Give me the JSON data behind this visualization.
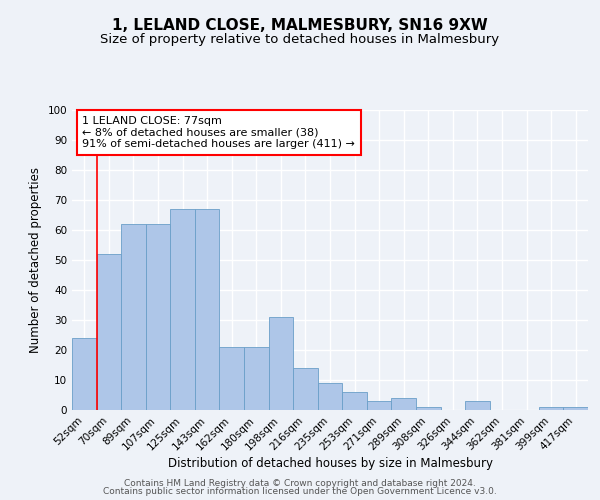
{
  "title1": "1, LELAND CLOSE, MALMESBURY, SN16 9XW",
  "title2": "Size of property relative to detached houses in Malmesbury",
  "xlabel": "Distribution of detached houses by size in Malmesbury",
  "ylabel": "Number of detached properties",
  "categories": [
    "52sqm",
    "70sqm",
    "89sqm",
    "107sqm",
    "125sqm",
    "143sqm",
    "162sqm",
    "180sqm",
    "198sqm",
    "216sqm",
    "235sqm",
    "253sqm",
    "271sqm",
    "289sqm",
    "308sqm",
    "326sqm",
    "344sqm",
    "362sqm",
    "381sqm",
    "399sqm",
    "417sqm"
  ],
  "values": [
    24,
    52,
    62,
    62,
    67,
    67,
    21,
    21,
    31,
    14,
    9,
    6,
    3,
    4,
    1,
    0,
    3,
    0,
    0,
    1,
    1
  ],
  "bar_color": "#aec6e8",
  "bar_edge_color": "#6a9fc8",
  "red_line_x": 1.5,
  "annotation_text": "1 LELAND CLOSE: 77sqm\n← 8% of detached houses are smaller (38)\n91% of semi-detached houses are larger (411) →",
  "annotation_box_color": "white",
  "annotation_box_edge_color": "red",
  "ylim": [
    0,
    100
  ],
  "yticks": [
    0,
    10,
    20,
    30,
    40,
    50,
    60,
    70,
    80,
    90,
    100
  ],
  "footer1": "Contains HM Land Registry data © Crown copyright and database right 2024.",
  "footer2": "Contains public sector information licensed under the Open Government Licence v3.0.",
  "background_color": "#eef2f8",
  "grid_color": "white",
  "title_fontsize": 11,
  "subtitle_fontsize": 9.5,
  "axis_label_fontsize": 8.5,
  "tick_fontsize": 7.5,
  "annotation_fontsize": 8,
  "footer_fontsize": 6.5
}
